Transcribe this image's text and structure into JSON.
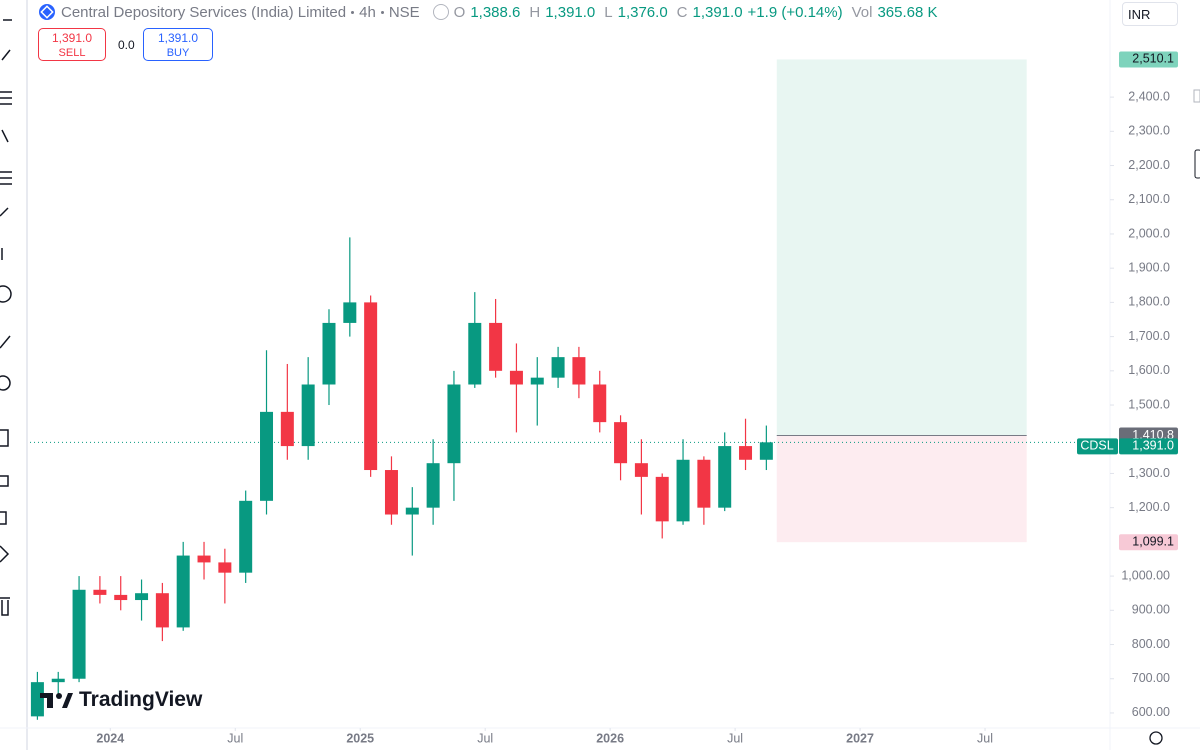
{
  "header": {
    "symbol": "Central Depository Services (India) Limited",
    "interval": "4h",
    "exchange": "NSE",
    "open_key": "O",
    "open": "1,388.6",
    "high_key": "H",
    "high": "1,391.0",
    "low_key": "L",
    "low": "1,376.0",
    "close_key": "C",
    "close": "1,391.0",
    "change": "+1.9 (+0.14%)",
    "volume_key": "Vol",
    "volume": "365.68 K",
    "currency": "INR"
  },
  "trade": {
    "sell_price": "1,391.0",
    "sell": "SELL",
    "spread": "0.0",
    "buy_price": "1,391.0",
    "buy": "BUY"
  },
  "brand": "TradingView",
  "chart_data": {
    "type": "candlestick",
    "x": [
      "2023-09",
      "2023-10",
      "2023-11",
      "2023-12",
      "2024-01",
      "2024-02",
      "2024-03",
      "2024-04",
      "2024-05",
      "2024-06",
      "2024-07",
      "2024-08",
      "2024-09",
      "2024-10",
      "2024-11",
      "2024-12",
      "2025-01",
      "2025-02",
      "2025-03",
      "2025-04",
      "2025-05",
      "2025-06",
      "2025-07",
      "2025-08",
      "2025-09",
      "2025-10",
      "2025-11",
      "2025-12",
      "2026-01",
      "2026-02",
      "2026-03",
      "2026-04",
      "2026-05",
      "2026-06",
      "2026-07",
      "2026-08"
    ],
    "open": [
      590,
      690,
      700,
      960,
      945,
      930,
      950,
      850,
      1060,
      1040,
      1010,
      1220,
      1480,
      1380,
      1560,
      1740,
      1800,
      1310,
      1180,
      1200,
      1330,
      1560,
      1740,
      1600,
      1560,
      1580,
      1640,
      1560,
      1450,
      1330,
      1290,
      1160,
      1340,
      1200,
      1380,
      1340
    ],
    "high": [
      720,
      720,
      1000,
      1000,
      1000,
      990,
      980,
      1100,
      1100,
      1080,
      1250,
      1660,
      1620,
      1640,
      1780,
      1990,
      1820,
      1350,
      1260,
      1400,
      1600,
      1830,
      1810,
      1680,
      1640,
      1670,
      1670,
      1600,
      1470,
      1400,
      1300,
      1400,
      1350,
      1420,
      1460,
      1440
    ],
    "low": [
      580,
      650,
      690,
      920,
      900,
      870,
      810,
      840,
      990,
      920,
      980,
      1180,
      1340,
      1340,
      1500,
      1700,
      1290,
      1150,
      1060,
      1150,
      1220,
      1550,
      1580,
      1420,
      1440,
      1550,
      1520,
      1420,
      1280,
      1180,
      1110,
      1150,
      1150,
      1190,
      1310,
      1310
    ],
    "close": [
      690,
      700,
      960,
      945,
      930,
      950,
      850,
      1060,
      1040,
      1010,
      1220,
      1480,
      1380,
      1560,
      1740,
      1800,
      1310,
      1180,
      1200,
      1330,
      1560,
      1740,
      1600,
      1560,
      1580,
      1640,
      1560,
      1450,
      1330,
      1290,
      1160,
      1340,
      1200,
      1380,
      1340,
      1391
    ],
    "up_color": "#089981",
    "down_color": "#f23645",
    "xlim": [
      "2023-09",
      "2027-12"
    ],
    "xticks": [
      {
        "value": "2024-01",
        "label": "2024"
      },
      {
        "value": "2024-07",
        "label": "Jul"
      },
      {
        "value": "2025-01",
        "label": "2025"
      },
      {
        "value": "2025-07",
        "label": "Jul"
      },
      {
        "value": "2026-01",
        "label": "2026"
      },
      {
        "value": "2026-07",
        "label": "Jul"
      },
      {
        "value": "2027-01",
        "label": "2027"
      },
      {
        "value": "2027-07",
        "label": "Jul"
      }
    ],
    "ylim": [
      556,
      2602
    ],
    "yticks": [
      {
        "value": 600,
        "label": "600.00"
      },
      {
        "value": 700,
        "label": "700.00"
      },
      {
        "value": 800,
        "label": "800.00"
      },
      {
        "value": 900,
        "label": "900.00"
      },
      {
        "value": 1000,
        "label": "1,000.00"
      },
      {
        "value": 1200,
        "label": "1,200.0"
      },
      {
        "value": 1300,
        "label": "1,300.0"
      },
      {
        "value": 1500,
        "label": "1,500.0"
      },
      {
        "value": 1600,
        "label": "1,600.0"
      },
      {
        "value": 1700,
        "label": "1,700.0"
      },
      {
        "value": 1800,
        "label": "1,800.0"
      },
      {
        "value": 1900,
        "label": "1,900.0"
      },
      {
        "value": 2000,
        "label": "2,000.0"
      },
      {
        "value": 2100,
        "label": "2,100.0"
      },
      {
        "value": 2200,
        "label": "2,200.0"
      },
      {
        "value": 2300,
        "label": "2,300.0"
      },
      {
        "value": 2400,
        "label": "2,400.0"
      }
    ],
    "last_price": {
      "tag": "CDSL",
      "value": 1391.0,
      "label": "1,391.0"
    },
    "position": {
      "start": "2026-09",
      "end": "2027-08",
      "entry": 1410.8,
      "entry_label": "1,410.8",
      "target": 2510.1,
      "target_label": "2,510.1",
      "stop": 1099.1,
      "stop_label": "1,099.1",
      "profit_color": "#e8f6f2",
      "loss_color": "#fdecf0"
    }
  }
}
